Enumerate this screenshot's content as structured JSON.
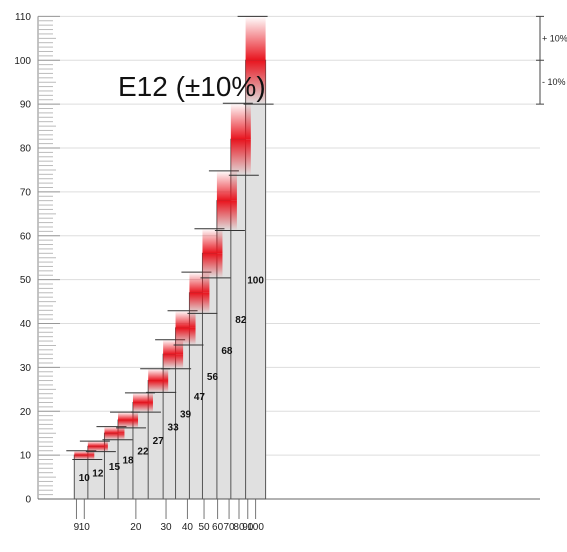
{
  "chart_data": {
    "type": "bar",
    "title": "E12 (±10%)",
    "categories": [
      "10",
      "12",
      "15",
      "18",
      "22",
      "27",
      "33",
      "39",
      "47",
      "56",
      "68",
      "82",
      "100"
    ],
    "values": [
      10,
      12,
      15,
      18,
      22,
      27,
      33,
      39,
      47,
      56,
      68,
      82,
      100
    ],
    "tolerance_percent": 10,
    "tolerance_labels": {
      "plus": "+ 10%",
      "minus": "- 10%"
    },
    "ylim": [
      0,
      110
    ],
    "yticks": [
      "0",
      "10",
      "20",
      "30",
      "40",
      "50",
      "60",
      "70",
      "80",
      "90",
      "100",
      "110"
    ],
    "x_scale": "log",
    "x_tick_values": [
      9,
      10,
      20,
      30,
      40,
      50,
      60,
      70,
      80,
      90,
      100
    ],
    "x_ticks": [
      "9",
      "10",
      "20",
      "30",
      "40",
      "50",
      "60",
      "70",
      "80",
      "90",
      "100"
    ],
    "grid": true,
    "colors": {
      "bar": "#e0e0e0",
      "bar_stroke": "#555555",
      "tolerance": "#e8141e",
      "grid": "#dddddd"
    }
  }
}
